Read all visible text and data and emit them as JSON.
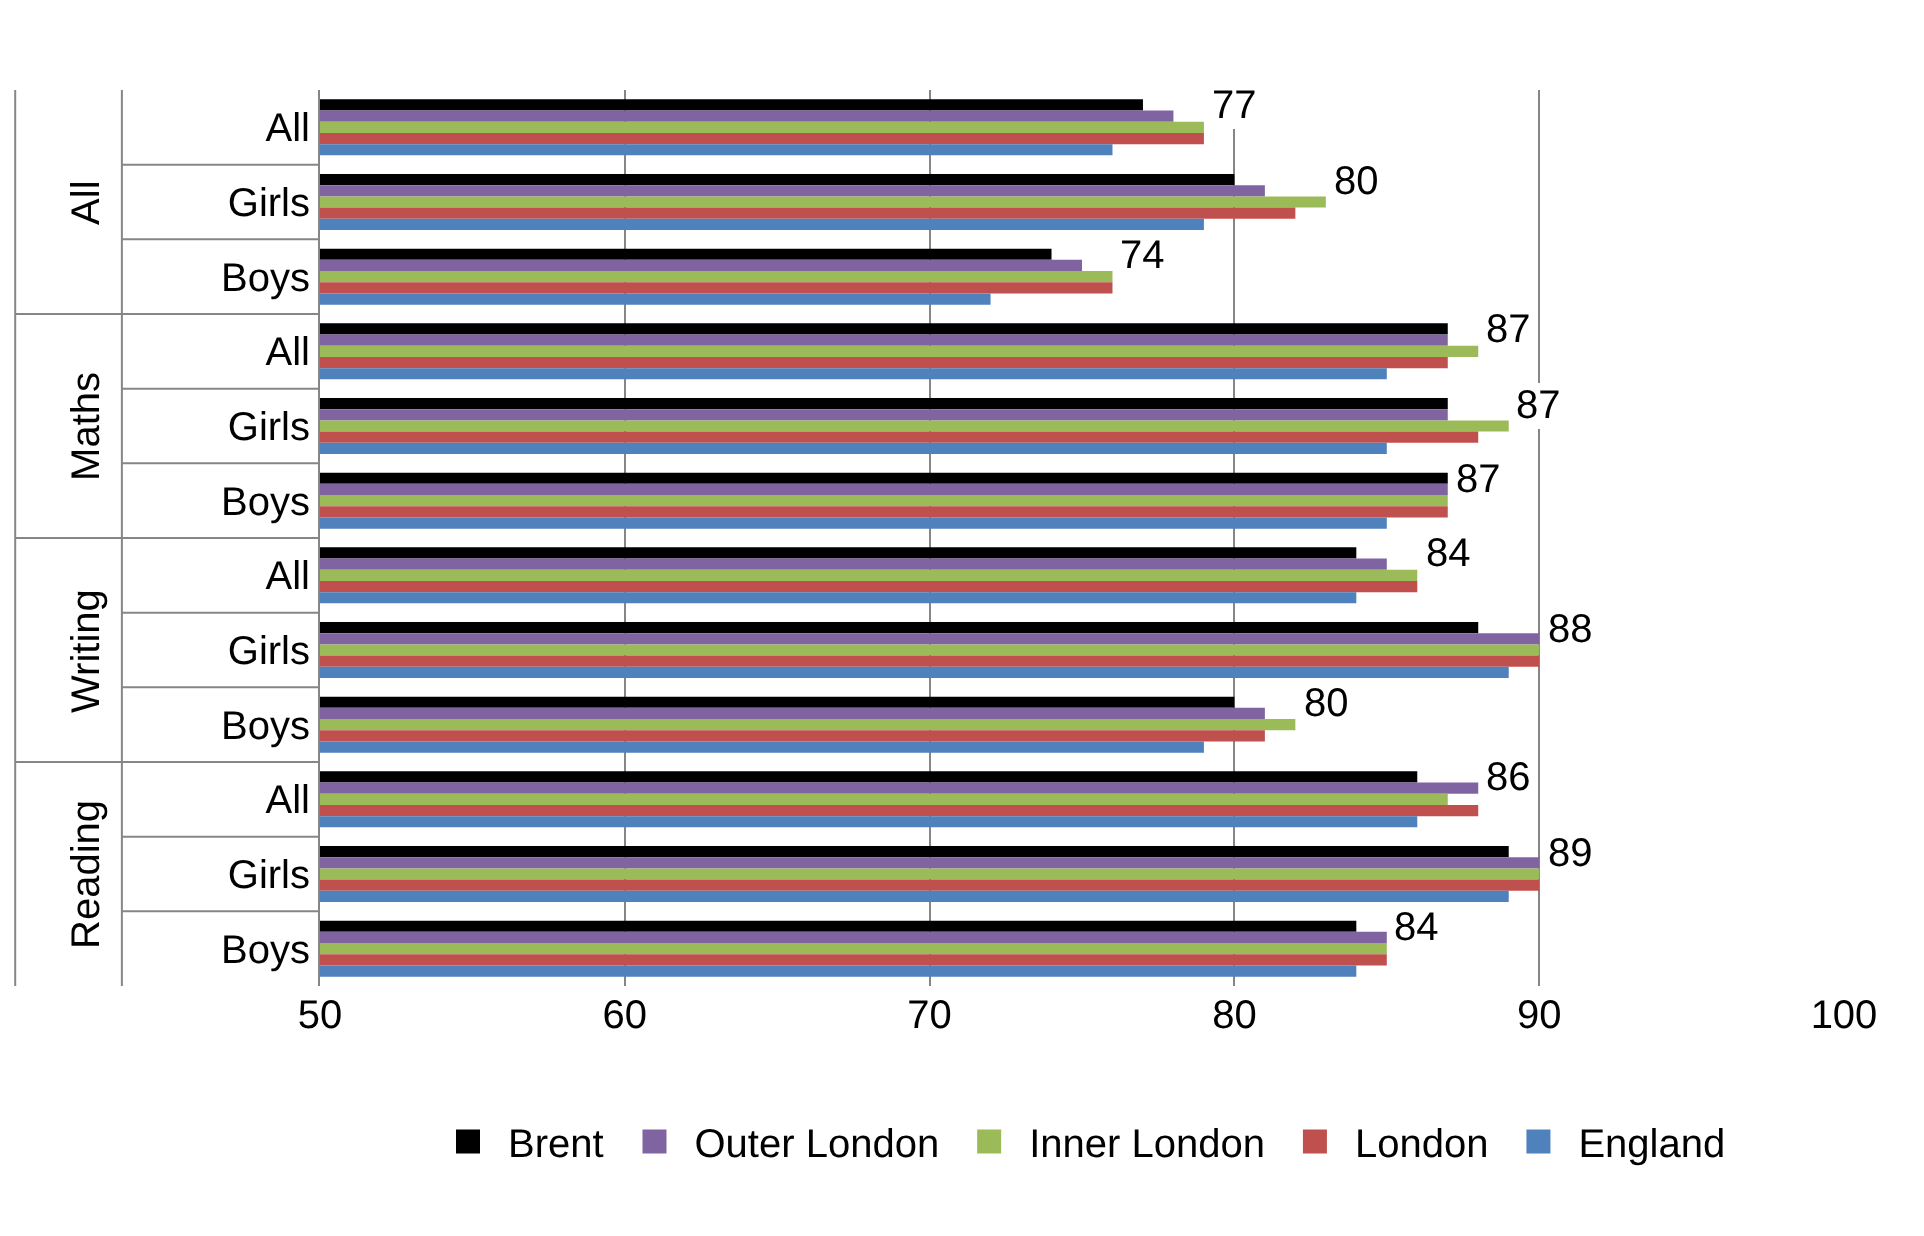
{
  "chart_data": {
    "type": "bar",
    "orientation": "horizontal",
    "categories": [
      "All",
      "Girls",
      "Boys",
      "All",
      "Girls",
      "Boys",
      "All",
      "Girls",
      "Boys",
      "All",
      "Girls",
      "Boys"
    ],
    "annotations": [
      "All",
      "Maths",
      "Writing",
      "Reading"
    ],
    "series": [
      {
        "name": "Brent",
        "color": "#000000",
        "values": [
          77,
          80,
          74,
          87,
          87,
          87,
          84,
          88,
          80,
          86,
          89,
          84
        ],
        "value_labels": [
          "77",
          "80",
          "74",
          "87",
          "87",
          "87",
          "84",
          "88",
          "80",
          "86",
          "89",
          "84"
        ]
      },
      {
        "name": "Outer London",
        "color": "#8064a2",
        "values": [
          78,
          81,
          75,
          87,
          87,
          87,
          85,
          90,
          81,
          88,
          90,
          85
        ]
      },
      {
        "name": "Inner London",
        "color": "#9bbb59",
        "values": [
          79,
          83,
          76,
          88,
          89,
          87,
          86,
          90,
          82,
          87,
          90,
          85
        ]
      },
      {
        "name": "London",
        "color": "#c0504d",
        "values": [
          79,
          82,
          76,
          87,
          88,
          87,
          86,
          90,
          81,
          88,
          90,
          85
        ]
      },
      {
        "name": "England",
        "color": "#4f81bd",
        "values": [
          76,
          79,
          72,
          85,
          85,
          85,
          84,
          89,
          79,
          86,
          89,
          84
        ]
      }
    ],
    "xlim": [
      50,
      100
    ],
    "xticks": [
      50,
      60,
      70,
      80,
      90,
      100
    ],
    "grid": "x",
    "legend": "bottom"
  }
}
